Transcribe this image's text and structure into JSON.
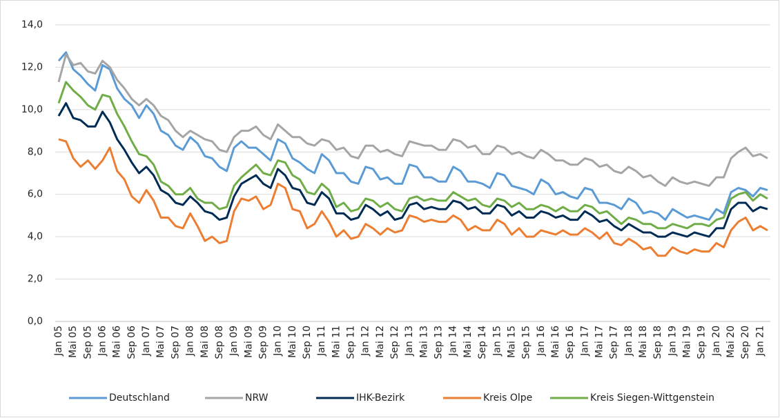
{
  "chart_data": {
    "type": "line",
    "categories": [
      "Jan 05",
      null,
      "Mai 05",
      null,
      "Sep 05",
      null,
      "Jan 06",
      null,
      "Mai 06",
      null,
      "Sep 06",
      null,
      "Jan 07",
      null,
      "Mai 07",
      null,
      "Sep 07",
      null,
      "Jan 08",
      null,
      "Mai 08",
      null,
      "Sep 08",
      null,
      "Jan 09",
      null,
      "Mai 09",
      null,
      "Sep 09",
      null,
      "Jan 10",
      null,
      "Mai 10",
      null,
      "Sep 10",
      null,
      "Jan 11",
      null,
      "Mai 11",
      null,
      "Sep 11",
      null,
      "Jan 12",
      null,
      "Mai 12",
      null,
      "Sep 12",
      null,
      "Jan 13",
      null,
      "Mai 13",
      null,
      "Sep 13",
      null,
      "Jan 14",
      null,
      "Mai 14",
      null,
      "Sep 14",
      null,
      "Jan 15",
      null,
      "Mai 15",
      null,
      "Sep 15",
      null,
      "Jan 16",
      null,
      "Mai 16",
      null,
      "Sep 16",
      null,
      "Jan 17",
      null,
      "Mai 17",
      null,
      "Sep 17",
      null,
      "Jan 18",
      null,
      "Mai 18",
      null,
      "Sep 18",
      null,
      "Jan 19",
      null,
      "Mai 19",
      null,
      "Sep 19",
      null,
      "Jan 20",
      null,
      "Mai 20",
      null,
      "Sep 20",
      null,
      "Jan 21",
      null
    ],
    "series": [
      {
        "name": "Deutschland",
        "color": "#5b9bd5",
        "values": [
          12.3,
          12.7,
          11.9,
          11.6,
          11.2,
          10.9,
          12.1,
          11.9,
          11.0,
          10.5,
          10.2,
          9.6,
          10.2,
          9.8,
          9.0,
          8.8,
          8.3,
          8.1,
          8.7,
          8.4,
          7.8,
          7.7,
          7.3,
          7.1,
          8.2,
          8.5,
          8.2,
          8.2,
          7.9,
          7.6,
          8.6,
          8.4,
          7.7,
          7.5,
          7.2,
          7.0,
          7.9,
          7.6,
          7.0,
          7.0,
          6.6,
          6.5,
          7.3,
          7.2,
          6.7,
          6.8,
          6.5,
          6.5,
          7.4,
          7.3,
          6.8,
          6.8,
          6.6,
          6.6,
          7.3,
          7.1,
          6.6,
          6.6,
          6.5,
          6.3,
          7.0,
          6.9,
          6.4,
          6.3,
          6.2,
          6.0,
          6.7,
          6.5,
          6.0,
          6.1,
          5.9,
          5.8,
          6.3,
          6.2,
          5.6,
          5.6,
          5.5,
          5.3,
          5.8,
          5.6,
          5.1,
          5.2,
          5.1,
          4.8,
          5.3,
          5.1,
          4.9,
          5.0,
          4.9,
          4.8,
          5.3,
          5.1,
          6.1,
          6.3,
          6.2,
          5.9,
          6.3,
          6.2
        ]
      },
      {
        "name": "NRW",
        "color": "#a5a5a5",
        "values": [
          11.3,
          12.6,
          12.1,
          12.2,
          11.8,
          11.7,
          12.3,
          12.0,
          11.4,
          11.0,
          10.5,
          10.2,
          10.5,
          10.2,
          9.7,
          9.5,
          9.0,
          8.7,
          9.0,
          8.8,
          8.6,
          8.5,
          8.1,
          8.0,
          8.7,
          9.0,
          9.0,
          9.2,
          8.8,
          8.6,
          9.3,
          9.0,
          8.7,
          8.7,
          8.4,
          8.3,
          8.6,
          8.5,
          8.1,
          8.2,
          7.8,
          7.7,
          8.3,
          8.3,
          8.0,
          8.1,
          7.9,
          7.8,
          8.5,
          8.4,
          8.3,
          8.3,
          8.1,
          8.1,
          8.6,
          8.5,
          8.2,
          8.3,
          7.9,
          7.9,
          8.3,
          8.2,
          7.9,
          8.0,
          7.8,
          7.7,
          8.1,
          7.9,
          7.6,
          7.6,
          7.4,
          7.4,
          7.7,
          7.6,
          7.3,
          7.4,
          7.1,
          7.0,
          7.3,
          7.1,
          6.8,
          6.9,
          6.6,
          6.4,
          6.8,
          6.6,
          6.5,
          6.6,
          6.5,
          6.4,
          6.8,
          6.8,
          7.7,
          8.0,
          8.2,
          7.8,
          7.9,
          7.7
        ]
      },
      {
        "name": "IHK-Bezirk",
        "color": "#002b55",
        "values": [
          9.7,
          10.3,
          9.6,
          9.5,
          9.2,
          9.2,
          9.9,
          9.4,
          8.6,
          8.1,
          7.5,
          7.0,
          7.3,
          6.9,
          6.2,
          6.0,
          5.6,
          5.5,
          5.9,
          5.6,
          5.2,
          5.1,
          4.8,
          4.9,
          5.9,
          6.5,
          6.7,
          6.9,
          6.5,
          6.3,
          7.2,
          6.9,
          6.3,
          6.2,
          5.6,
          5.5,
          6.1,
          5.8,
          5.1,
          5.1,
          4.8,
          4.9,
          5.5,
          5.3,
          5.0,
          5.2,
          4.8,
          4.9,
          5.5,
          5.6,
          5.3,
          5.4,
          5.3,
          5.3,
          5.7,
          5.6,
          5.3,
          5.4,
          5.1,
          5.1,
          5.5,
          5.4,
          5.0,
          5.2,
          4.9,
          4.9,
          5.2,
          5.1,
          4.9,
          5.0,
          4.8,
          4.8,
          5.2,
          5.0,
          4.7,
          4.8,
          4.5,
          4.3,
          4.6,
          4.4,
          4.2,
          4.2,
          4.0,
          4.0,
          4.2,
          4.1,
          4.0,
          4.2,
          4.1,
          4.0,
          4.4,
          4.4,
          5.3,
          5.6,
          5.6,
          5.2,
          5.4,
          5.3
        ]
      },
      {
        "name": "Kreis Olpe",
        "color": "#ed7d31",
        "values": [
          8.6,
          8.5,
          7.7,
          7.3,
          7.6,
          7.2,
          7.6,
          8.2,
          7.1,
          6.7,
          5.9,
          5.6,
          6.2,
          5.7,
          4.9,
          4.9,
          4.5,
          4.4,
          5.1,
          4.5,
          3.8,
          4.0,
          3.7,
          3.8,
          5.2,
          5.8,
          5.7,
          5.9,
          5.3,
          5.5,
          6.5,
          6.3,
          5.3,
          5.2,
          4.4,
          4.6,
          5.2,
          4.7,
          4.0,
          4.3,
          3.9,
          4.0,
          4.6,
          4.4,
          4.1,
          4.4,
          4.2,
          4.3,
          5.0,
          4.9,
          4.7,
          4.8,
          4.7,
          4.7,
          5.0,
          4.8,
          4.3,
          4.5,
          4.3,
          4.3,
          4.8,
          4.6,
          4.1,
          4.4,
          4.0,
          4.0,
          4.3,
          4.2,
          4.1,
          4.3,
          4.1,
          4.1,
          4.4,
          4.2,
          3.9,
          4.2,
          3.7,
          3.6,
          3.9,
          3.7,
          3.4,
          3.5,
          3.1,
          3.1,
          3.5,
          3.3,
          3.2,
          3.4,
          3.3,
          3.3,
          3.7,
          3.5,
          4.3,
          4.7,
          4.9,
          4.3,
          4.5,
          4.3
        ]
      },
      {
        "name": "Kreis Siegen-Wittgenstein",
        "color": "#70ad47",
        "values": [
          10.3,
          11.3,
          10.9,
          10.6,
          10.2,
          10.0,
          10.7,
          10.6,
          9.8,
          9.2,
          8.5,
          7.9,
          7.8,
          7.4,
          6.6,
          6.4,
          6.0,
          6.0,
          6.3,
          5.8,
          5.6,
          5.6,
          5.3,
          5.4,
          6.4,
          6.8,
          7.1,
          7.4,
          7.0,
          6.9,
          7.6,
          7.5,
          6.9,
          6.7,
          6.1,
          6.0,
          6.5,
          6.2,
          5.4,
          5.6,
          5.2,
          5.3,
          5.8,
          5.7,
          5.4,
          5.6,
          5.3,
          5.2,
          5.8,
          5.9,
          5.7,
          5.8,
          5.7,
          5.7,
          6.1,
          5.9,
          5.7,
          5.8,
          5.5,
          5.4,
          5.8,
          5.7,
          5.4,
          5.6,
          5.3,
          5.3,
          5.5,
          5.4,
          5.2,
          5.4,
          5.2,
          5.2,
          5.5,
          5.4,
          5.1,
          5.2,
          4.9,
          4.6,
          4.9,
          4.8,
          4.6,
          4.6,
          4.4,
          4.4,
          4.6,
          4.5,
          4.4,
          4.6,
          4.6,
          4.5,
          4.8,
          4.9,
          5.8,
          6.0,
          6.1,
          5.7,
          6.0,
          5.8
        ]
      }
    ],
    "ylim": [
      0,
      14
    ],
    "yticks": [
      {
        "value": 0,
        "label": "0,0"
      },
      {
        "value": 2,
        "label": "2,0"
      },
      {
        "value": 4,
        "label": "4,0"
      },
      {
        "value": 6,
        "label": "6,0"
      },
      {
        "value": 8,
        "label": "8,0"
      },
      {
        "value": 10,
        "label": "10,0"
      },
      {
        "value": 12,
        "label": "12,0"
      },
      {
        "value": 14,
        "label": "14,0"
      }
    ],
    "grid": true,
    "legend": "bottom"
  }
}
